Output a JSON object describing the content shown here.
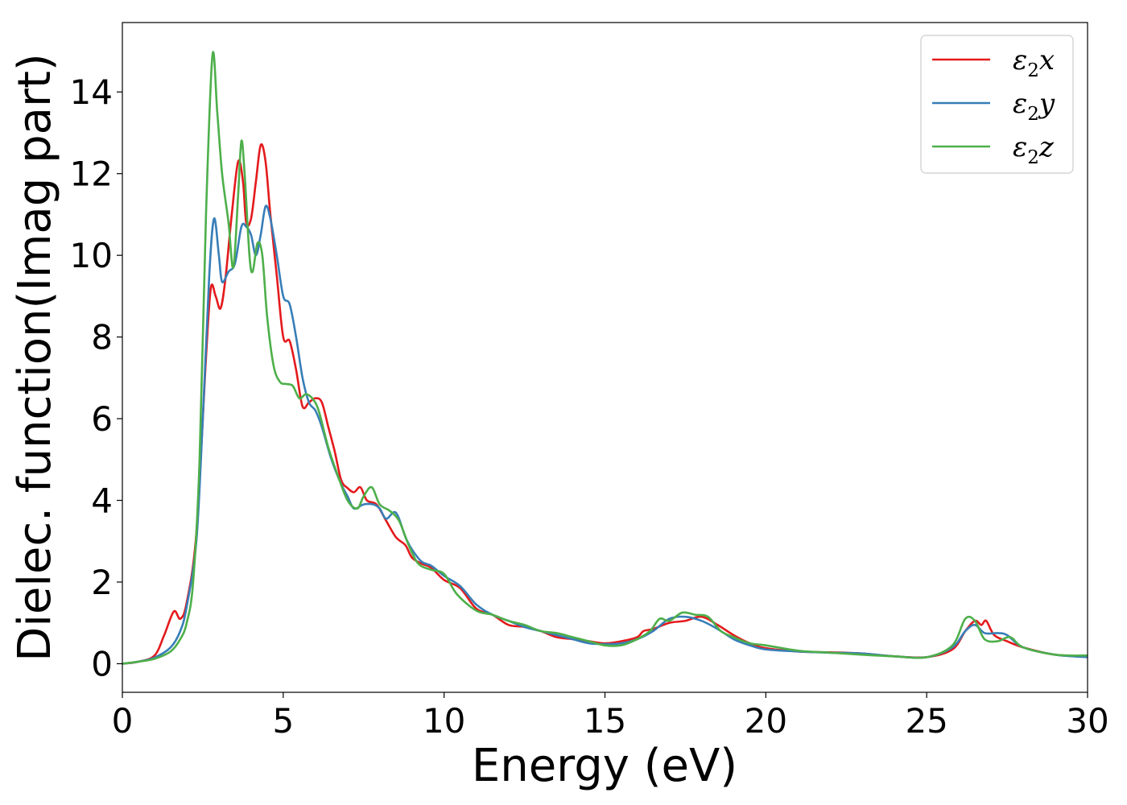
{
  "chart_data": {
    "type": "line",
    "title": "",
    "xlabel": "Energy (eV)",
    "ylabel": "Dielec. function(Imag part)",
    "xlim": [
      0,
      30
    ],
    "ylim": [
      -0.7,
      15.7
    ],
    "xticks": [
      0,
      5,
      10,
      15,
      20,
      25,
      30
    ],
    "yticks": [
      0,
      2,
      4,
      6,
      8,
      10,
      12,
      14
    ],
    "grid": false,
    "legend_position": "top-right",
    "series": [
      {
        "name": "ε₂x",
        "legend_base": "ε",
        "legend_sub": "2",
        "legend_var": "x",
        "color": "#e41a1c",
        "points": [
          [
            0,
            0
          ],
          [
            0.5,
            0.05
          ],
          [
            1,
            0.2
          ],
          [
            1.3,
            0.7
          ],
          [
            1.6,
            1.28
          ],
          [
            1.8,
            1.1
          ],
          [
            2,
            1.5
          ],
          [
            2.3,
            3.2
          ],
          [
            2.6,
            7.5
          ],
          [
            2.75,
            9.2
          ],
          [
            2.9,
            9.0
          ],
          [
            3.05,
            8.7
          ],
          [
            3.2,
            9.4
          ],
          [
            3.4,
            11.0
          ],
          [
            3.6,
            12.3
          ],
          [
            3.75,
            11.8
          ],
          [
            3.85,
            10.8
          ],
          [
            4.0,
            10.9
          ],
          [
            4.15,
            11.8
          ],
          [
            4.3,
            12.7
          ],
          [
            4.45,
            12.3
          ],
          [
            4.6,
            11.0
          ],
          [
            4.8,
            9.5
          ],
          [
            5.0,
            8.0
          ],
          [
            5.2,
            7.9
          ],
          [
            5.4,
            7.2
          ],
          [
            5.6,
            6.3
          ],
          [
            5.8,
            6.4
          ],
          [
            6.0,
            6.5
          ],
          [
            6.2,
            6.4
          ],
          [
            6.4,
            5.8
          ],
          [
            6.6,
            5.2
          ],
          [
            6.8,
            4.5
          ],
          [
            7.0,
            4.3
          ],
          [
            7.2,
            4.2
          ],
          [
            7.4,
            4.32
          ],
          [
            7.6,
            4.0
          ],
          [
            7.9,
            3.9
          ],
          [
            8.2,
            3.5
          ],
          [
            8.5,
            3.1
          ],
          [
            8.8,
            2.9
          ],
          [
            9.0,
            2.6
          ],
          [
            9.3,
            2.45
          ],
          [
            9.6,
            2.35
          ],
          [
            10.0,
            2.05
          ],
          [
            10.5,
            1.85
          ],
          [
            11.0,
            1.35
          ],
          [
            11.5,
            1.2
          ],
          [
            12.0,
            0.95
          ],
          [
            12.5,
            0.9
          ],
          [
            13.0,
            0.8
          ],
          [
            13.5,
            0.65
          ],
          [
            14.0,
            0.6
          ],
          [
            14.5,
            0.55
          ],
          [
            15.0,
            0.5
          ],
          [
            15.5,
            0.55
          ],
          [
            16.0,
            0.65
          ],
          [
            16.2,
            0.8
          ],
          [
            16.5,
            0.85
          ],
          [
            17.0,
            1.0
          ],
          [
            17.5,
            1.05
          ],
          [
            18.0,
            1.15
          ],
          [
            18.5,
            0.95
          ],
          [
            19.0,
            0.7
          ],
          [
            19.5,
            0.5
          ],
          [
            20,
            0.38
          ],
          [
            21,
            0.3
          ],
          [
            22,
            0.28
          ],
          [
            23,
            0.25
          ],
          [
            24,
            0.18
          ],
          [
            25,
            0.16
          ],
          [
            25.8,
            0.35
          ],
          [
            26.2,
            0.8
          ],
          [
            26.5,
            1.05
          ],
          [
            26.7,
            0.95
          ],
          [
            26.85,
            1.05
          ],
          [
            27.1,
            0.7
          ],
          [
            27.5,
            0.55
          ],
          [
            28,
            0.4
          ],
          [
            29,
            0.22
          ],
          [
            30,
            0.18
          ]
        ]
      },
      {
        "name": "ε₂y",
        "legend_base": "ε",
        "legend_sub": "2",
        "legend_var": "y",
        "color": "#377eb8",
        "points": [
          [
            0,
            0
          ],
          [
            0.5,
            0.05
          ],
          [
            1,
            0.15
          ],
          [
            1.5,
            0.4
          ],
          [
            1.8,
            0.8
          ],
          [
            2,
            1.4
          ],
          [
            2.3,
            3.0
          ],
          [
            2.5,
            6.0
          ],
          [
            2.7,
            9.5
          ],
          [
            2.85,
            10.9
          ],
          [
            3.0,
            10.0
          ],
          [
            3.1,
            9.35
          ],
          [
            3.3,
            9.6
          ],
          [
            3.5,
            9.8
          ],
          [
            3.7,
            10.7
          ],
          [
            3.85,
            10.7
          ],
          [
            4.0,
            10.5
          ],
          [
            4.15,
            10.0
          ],
          [
            4.3,
            10.5
          ],
          [
            4.45,
            11.2
          ],
          [
            4.6,
            10.9
          ],
          [
            4.8,
            10.0
          ],
          [
            5.0,
            9.0
          ],
          [
            5.2,
            8.8
          ],
          [
            5.4,
            8.0
          ],
          [
            5.6,
            7.0
          ],
          [
            5.8,
            6.4
          ],
          [
            6.0,
            6.2
          ],
          [
            6.2,
            5.8
          ],
          [
            6.5,
            5.0
          ],
          [
            6.8,
            4.4
          ],
          [
            7.0,
            4.1
          ],
          [
            7.2,
            3.8
          ],
          [
            7.5,
            3.9
          ],
          [
            7.8,
            3.9
          ],
          [
            8.0,
            3.8
          ],
          [
            8.2,
            3.55
          ],
          [
            8.5,
            3.7
          ],
          [
            8.8,
            3.1
          ],
          [
            9.0,
            2.8
          ],
          [
            9.3,
            2.5
          ],
          [
            9.6,
            2.4
          ],
          [
            10.0,
            2.15
          ],
          [
            10.5,
            1.9
          ],
          [
            11.0,
            1.45
          ],
          [
            11.5,
            1.2
          ],
          [
            12.0,
            1.05
          ],
          [
            12.5,
            0.9
          ],
          [
            13.0,
            0.8
          ],
          [
            13.5,
            0.7
          ],
          [
            14.0,
            0.6
          ],
          [
            14.5,
            0.5
          ],
          [
            15.0,
            0.48
          ],
          [
            15.5,
            0.5
          ],
          [
            16.0,
            0.6
          ],
          [
            16.5,
            0.8
          ],
          [
            17.0,
            1.1
          ],
          [
            17.5,
            1.15
          ],
          [
            18.0,
            1.05
          ],
          [
            18.5,
            0.85
          ],
          [
            19.0,
            0.6
          ],
          [
            19.5,
            0.45
          ],
          [
            20,
            0.35
          ],
          [
            21,
            0.3
          ],
          [
            22,
            0.27
          ],
          [
            23,
            0.25
          ],
          [
            24,
            0.18
          ],
          [
            25,
            0.16
          ],
          [
            25.8,
            0.4
          ],
          [
            26.2,
            0.8
          ],
          [
            26.5,
            0.95
          ],
          [
            26.8,
            0.75
          ],
          [
            27.2,
            0.75
          ],
          [
            27.5,
            0.7
          ],
          [
            28,
            0.4
          ],
          [
            29,
            0.22
          ],
          [
            30,
            0.16
          ]
        ]
      },
      {
        "name": "ε₂z",
        "legend_base": "ε",
        "legend_sub": "2",
        "legend_var": "z",
        "color": "#4daf4a",
        "points": [
          [
            0,
            0
          ],
          [
            0.5,
            0.05
          ],
          [
            1,
            0.12
          ],
          [
            1.5,
            0.3
          ],
          [
            1.8,
            0.6
          ],
          [
            2,
            1.0
          ],
          [
            2.2,
            2.0
          ],
          [
            2.4,
            5.0
          ],
          [
            2.6,
            11.0
          ],
          [
            2.8,
            14.9
          ],
          [
            2.95,
            13.5
          ],
          [
            3.1,
            12.0
          ],
          [
            3.3,
            10.8
          ],
          [
            3.45,
            9.7
          ],
          [
            3.6,
            11.5
          ],
          [
            3.7,
            12.8
          ],
          [
            3.8,
            12.0
          ],
          [
            3.95,
            10.0
          ],
          [
            4.05,
            9.6
          ],
          [
            4.2,
            10.3
          ],
          [
            4.35,
            10.0
          ],
          [
            4.5,
            8.5
          ],
          [
            4.7,
            7.3
          ],
          [
            4.9,
            6.9
          ],
          [
            5.1,
            6.85
          ],
          [
            5.3,
            6.8
          ],
          [
            5.5,
            6.5
          ],
          [
            5.7,
            6.6
          ],
          [
            5.9,
            6.5
          ],
          [
            6.1,
            6.2
          ],
          [
            6.4,
            5.3
          ],
          [
            6.7,
            4.6
          ],
          [
            7.0,
            4.0
          ],
          [
            7.3,
            3.8
          ],
          [
            7.5,
            4.1
          ],
          [
            7.75,
            4.32
          ],
          [
            8.0,
            3.9
          ],
          [
            8.3,
            3.75
          ],
          [
            8.6,
            3.5
          ],
          [
            8.9,
            2.9
          ],
          [
            9.2,
            2.45
          ],
          [
            9.6,
            2.3
          ],
          [
            10.0,
            2.2
          ],
          [
            10.4,
            1.7
          ],
          [
            11.0,
            1.3
          ],
          [
            11.5,
            1.2
          ],
          [
            12.0,
            1.05
          ],
          [
            12.5,
            0.95
          ],
          [
            13.0,
            0.8
          ],
          [
            13.5,
            0.75
          ],
          [
            14.0,
            0.65
          ],
          [
            14.5,
            0.55
          ],
          [
            15.0,
            0.45
          ],
          [
            15.5,
            0.45
          ],
          [
            16.0,
            0.6
          ],
          [
            16.4,
            0.8
          ],
          [
            16.7,
            1.1
          ],
          [
            17.0,
            1.05
          ],
          [
            17.4,
            1.25
          ],
          [
            17.8,
            1.2
          ],
          [
            18.2,
            1.15
          ],
          [
            18.6,
            0.8
          ],
          [
            19.0,
            0.65
          ],
          [
            19.5,
            0.5
          ],
          [
            20,
            0.45
          ],
          [
            21,
            0.32
          ],
          [
            22,
            0.27
          ],
          [
            23,
            0.22
          ],
          [
            24,
            0.18
          ],
          [
            25,
            0.16
          ],
          [
            25.8,
            0.45
          ],
          [
            26.2,
            1.1
          ],
          [
            26.5,
            1.05
          ],
          [
            26.8,
            0.6
          ],
          [
            27.2,
            0.55
          ],
          [
            27.6,
            0.65
          ],
          [
            28,
            0.4
          ],
          [
            29,
            0.22
          ],
          [
            30,
            0.2
          ]
        ]
      }
    ]
  }
}
